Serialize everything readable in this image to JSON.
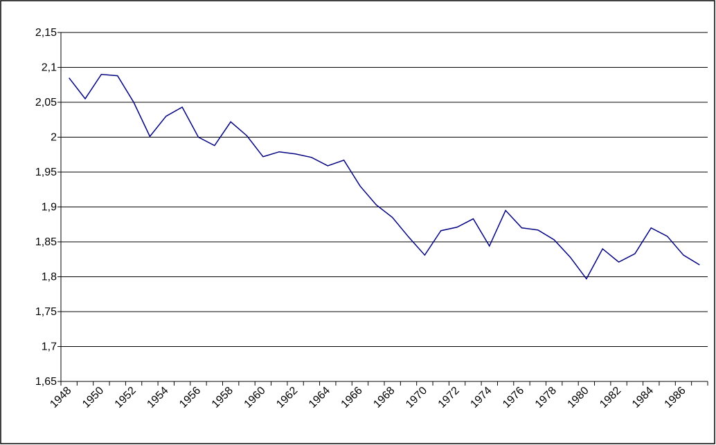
{
  "chart_data": {
    "type": "line",
    "categories": [
      "1948",
      null,
      "1950",
      null,
      "1952",
      null,
      "1954",
      null,
      "1956",
      null,
      "1958",
      null,
      "1960",
      null,
      "1962",
      null,
      "1964",
      null,
      "1966",
      null,
      "1968",
      null,
      "1970",
      null,
      "1972",
      null,
      "1974",
      null,
      "1976",
      null,
      "1978",
      null,
      "1980",
      null,
      "1982",
      null,
      "1984",
      null,
      "1986",
      null
    ],
    "series": [
      {
        "color": "#000080",
        "values": [
          2.085,
          2.055,
          2.09,
          2.088,
          2.05,
          2.001,
          2.03,
          2.043,
          2.0,
          1.988,
          2.022,
          2.002,
          1.972,
          1.979,
          1.976,
          1.971,
          1.959,
          1.967,
          1.93,
          1.903,
          1.885,
          1.857,
          1.831,
          1.866,
          1.871,
          1.883,
          1.844,
          1.895,
          1.87,
          1.867,
          1.853,
          1.828,
          1.797,
          1.84,
          1.821,
          1.833,
          1.87,
          1.858,
          1.831,
          1.817
        ]
      }
    ],
    "ylim": [
      1.65,
      2.15
    ],
    "yticks": [
      {
        "value": 1.65,
        "label": "1,65"
      },
      {
        "value": 1.7,
        "label": "1,7"
      },
      {
        "value": 1.75,
        "label": "1,75"
      },
      {
        "value": 1.8,
        "label": "1,8"
      },
      {
        "value": 1.85,
        "label": "1,85"
      },
      {
        "value": 1.9,
        "label": "1,9"
      },
      {
        "value": 1.95,
        "label": "1,95"
      },
      {
        "value": 2,
        "label": "2"
      },
      {
        "value": 2.05,
        "label": "2,05"
      },
      {
        "value": 2.1,
        "label": "2,1"
      },
      {
        "value": 2.15,
        "label": "2,15"
      }
    ],
    "grid": true
  }
}
